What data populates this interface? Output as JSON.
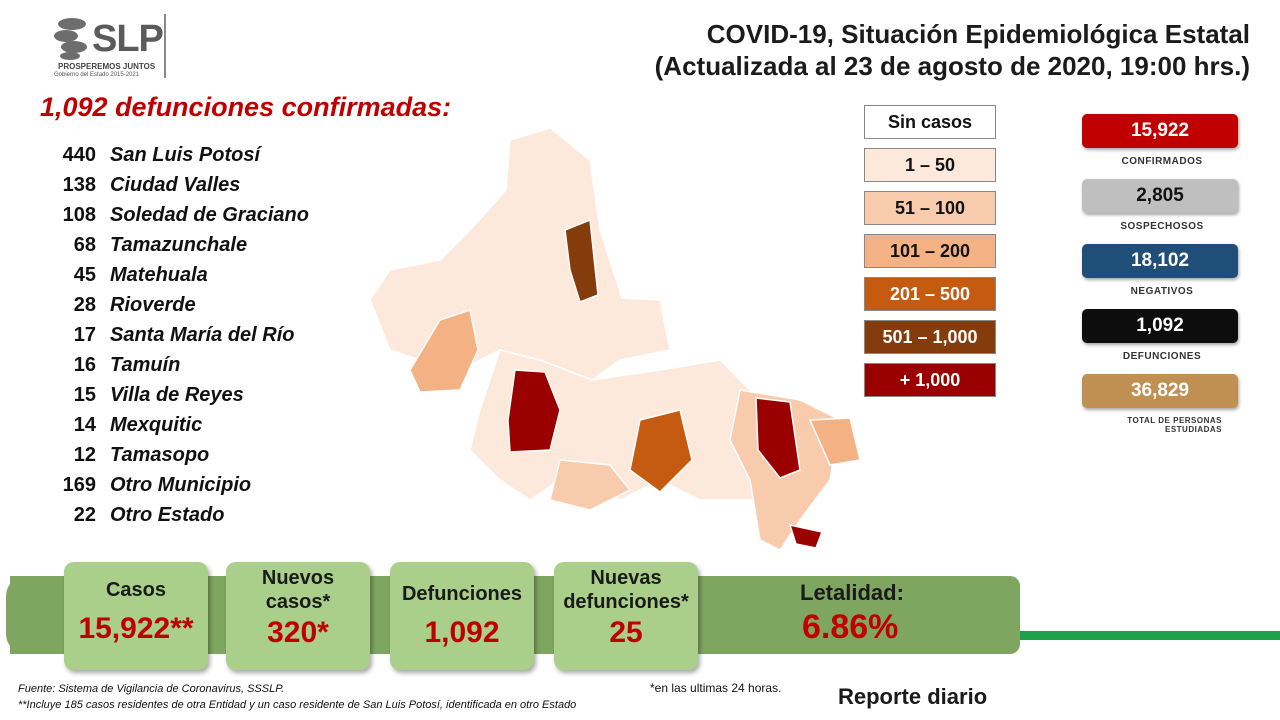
{
  "logo": {
    "text": "SLP",
    "line1": "PROSPEREMOS JUNTOS",
    "line2": "Gobierno del Estado 2015-2021"
  },
  "title": {
    "line1": "COVID-19, Situación Epidemiológica Estatal",
    "line2": "(Actualizada al 23 de agosto de 2020, 19:00 hrs.)"
  },
  "deaths_heading": "1,092 defunciones confirmadas:",
  "deaths_list": [
    {
      "count": "440",
      "name": "San Luis Potosí"
    },
    {
      "count": "138",
      "name": "Ciudad Valles"
    },
    {
      "count": "108",
      "name": "Soledad de Graciano"
    },
    {
      "count": "68",
      "name": "Tamazunchale"
    },
    {
      "count": "45",
      "name": "Matehuala"
    },
    {
      "count": "28",
      "name": "Rioverde"
    },
    {
      "count": "17",
      "name": "Santa María del Río"
    },
    {
      "count": "16",
      "name": "Tamuín"
    },
    {
      "count": "15",
      "name": "Villa de Reyes"
    },
    {
      "count": "14",
      "name": "Mexquitic"
    },
    {
      "count": "12",
      "name": "Tamasopo"
    },
    {
      "count": "169",
      "name": "Otro Municipio"
    },
    {
      "count": "22",
      "name": "Otro Estado"
    }
  ],
  "legend": [
    {
      "label": "Sin casos",
      "color": "#ffffff",
      "text_color": "#111111"
    },
    {
      "label": "1 – 50",
      "color": "#fce9dc",
      "text_color": "#111111"
    },
    {
      "label": "51 – 100",
      "color": "#f8cbad",
      "text_color": "#111111"
    },
    {
      "label": "101 – 200",
      "color": "#f4b183",
      "text_color": "#111111"
    },
    {
      "label": "201 – 500",
      "color": "#c55a11",
      "text_color": "#ffffff"
    },
    {
      "label": "501 – 1,000",
      "color": "#843c0c",
      "text_color": "#ffffff"
    },
    {
      "label": "+ 1,000",
      "color": "#9b0000",
      "text_color": "#ffffff"
    }
  ],
  "stats": [
    {
      "value": "15,922",
      "label": "CONFIRMADOS",
      "color": "#c00000",
      "text_color": "#ffffff"
    },
    {
      "value": "2,805",
      "label": "SOSPECHOSOS",
      "color": "#bfbfbf",
      "text_color": "#111111"
    },
    {
      "value": "18,102",
      "label": "NEGATIVOS",
      "color": "#1f4e79",
      "text_color": "#ffffff"
    },
    {
      "value": "1,092",
      "label": "DEFUNCIONES",
      "color": "#0d0d0d",
      "text_color": "#ffffff"
    },
    {
      "value": "36,829",
      "label": "TOTAL DE PERSONAS ESTUDIADAS",
      "color": "#c09052",
      "text_color": "#ffffff"
    }
  ],
  "summary": {
    "casos_label": "Casos",
    "casos_value": "15,922**",
    "nuevos_label": "Nuevos casos*",
    "nuevos_value": "320*",
    "defunciones_label": "Defunciones",
    "defunciones_value": "1,092",
    "nuevas_def_label": "Nuevas defunciones*",
    "nuevas_def_value": "25",
    "letalidad_label": "Letalidad:",
    "letalidad_value": "6.86%"
  },
  "footer": {
    "source": "Fuente: Sistema de Vigilancia  de Coronavirus, SSSLP.",
    "note": "**Incluye 185 casos residentes de otra Entidad  y un caso residente de San Luis Potosí, identificada  en otro Estado",
    "last24": "*en las ultimas 24 horas.",
    "report": "Reporte diario"
  }
}
